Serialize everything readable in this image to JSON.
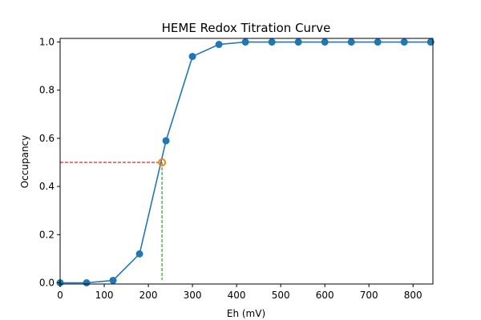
{
  "chart_data": {
    "type": "line",
    "title": "HEME Redox Titration Curve",
    "xlabel": "Eh (mV)",
    "ylabel": "Occupancy",
    "xlim": [
      0,
      845
    ],
    "ylim": [
      -0.005,
      1.015
    ],
    "xticks": [
      0,
      100,
      200,
      300,
      400,
      500,
      600,
      700,
      800
    ],
    "yticks": [
      0.0,
      0.2,
      0.4,
      0.6,
      0.8,
      1.0
    ],
    "grid": false,
    "series": [
      {
        "color": "#1f77b4",
        "x": [
          0,
          60,
          120,
          180,
          240,
          300,
          360,
          420,
          480,
          540,
          600,
          660,
          720,
          780,
          840
        ],
        "y": [
          0.0,
          0.0,
          0.01,
          0.12,
          0.59,
          0.94,
          0.99,
          1.0,
          1.0,
          1.0,
          1.0,
          1.0,
          1.0,
          1.0,
          1.0
        ]
      }
    ],
    "midpoint": {
      "x": 231,
      "y": 0.5,
      "color": "#ff7f0e"
    },
    "guides": {
      "horizontal_color": "#d62728",
      "vertical_color": "#2ca02c"
    }
  }
}
